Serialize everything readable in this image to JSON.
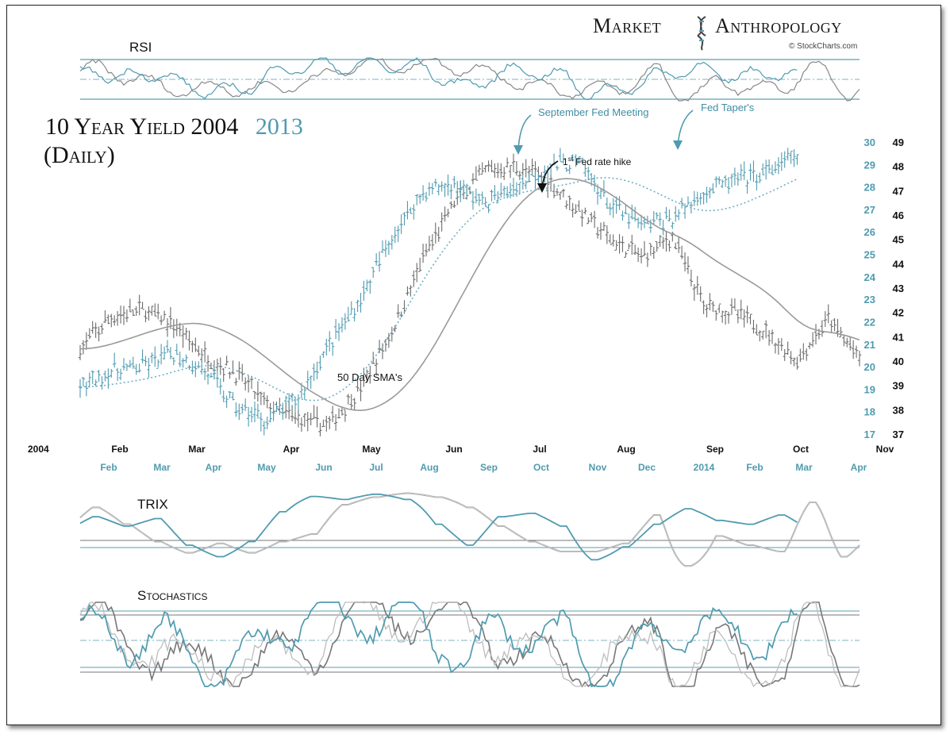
{
  "brand": {
    "name_part1": "Market",
    "name_part2": "Anthropology",
    "credit": "© StockCharts.com"
  },
  "chart_data": {
    "type": "line",
    "title_part1": "10 Year Yield  2004",
    "title_part2": "2013",
    "subtitle": "(Daily)",
    "colors": {
      "y2004": "#6b6b6b",
      "y2013": "#4f9bb0",
      "sma2004": "#9a9a9a",
      "sma2013": "#6fb0c4"
    },
    "panels": {
      "rsi": "RSI",
      "trix": "TRIX",
      "stochastics": "Stochastics"
    },
    "x_axis_2004": [
      "2004",
      "Feb",
      "Mar",
      "Apr",
      "May",
      "Jun",
      "Jul",
      "Aug",
      "Sep",
      "Oct",
      "Nov"
    ],
    "x_axis_2013": [
      "Feb",
      "Mar",
      "Apr",
      "May",
      "Jun",
      "Jul",
      "Aug",
      "Sep",
      "Oct",
      "Nov",
      "Dec",
      "2014",
      "Feb",
      "Mar",
      "Apr"
    ],
    "y_axis_2013": [
      "30",
      "29",
      "28",
      "27",
      "26",
      "25",
      "24",
      "23",
      "22",
      "21",
      "20",
      "19",
      "18",
      "17"
    ],
    "y_axis_2004": [
      "49",
      "48",
      "47",
      "46",
      "45",
      "44",
      "43",
      "42",
      "41",
      "40",
      "39",
      "38",
      "37"
    ],
    "ylim_2004": [
      37,
      49
    ],
    "ylim_2013": [
      17,
      30
    ],
    "annotations": {
      "sma": "50 Day SMA's",
      "sept_fed": "September Fed Meeting",
      "taper": "Fed Taper's",
      "hike_pre": "1",
      "hike_sup": "st",
      "hike_post": " Fed rate hike"
    },
    "series": [
      {
        "name": "2004",
        "x": [
          0,
          10,
          20,
          30,
          40,
          50,
          60,
          70,
          80,
          90,
          100,
          110,
          120,
          130,
          140,
          150,
          160,
          170,
          180,
          190,
          200,
          210,
          220,
          230,
          240,
          250
        ],
        "y": [
          40.5,
          41.8,
          42.1,
          41.5,
          40.2,
          39.5,
          38.2,
          37.6,
          37.4,
          38.9,
          41.2,
          44.2,
          46.5,
          47.8,
          48.0,
          47.4,
          46.2,
          45.0,
          44.3,
          45.1,
          42.3,
          42.0,
          41.2,
          40.0,
          41.7,
          40.1
        ]
      },
      {
        "name": "2013",
        "x": [
          0,
          10,
          20,
          30,
          40,
          50,
          60,
          70,
          80,
          90,
          100,
          110,
          120,
          130,
          140,
          150,
          160,
          170,
          180,
          190,
          200,
          210,
          220,
          230
        ],
        "y": [
          19.1,
          19.8,
          20.0,
          20.6,
          19.8,
          18.2,
          17.6,
          18.6,
          21.0,
          23.0,
          25.8,
          27.8,
          28.1,
          27.3,
          28.0,
          28.9,
          29.1,
          27.2,
          26.3,
          26.6,
          27.8,
          28.3,
          28.6,
          29.4
        ]
      }
    ]
  }
}
